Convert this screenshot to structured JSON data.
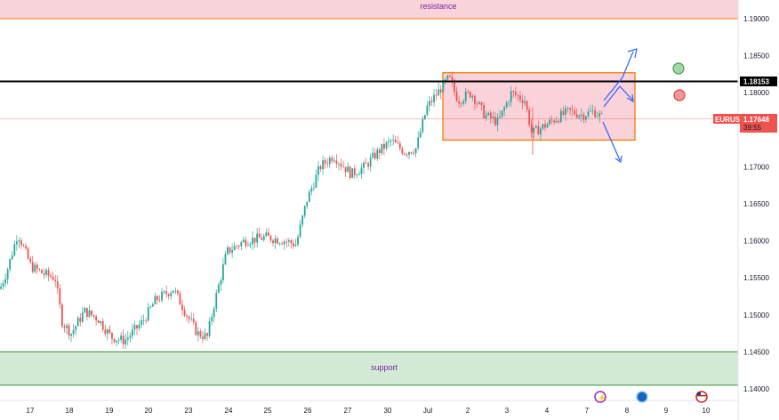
{
  "chart_data": {
    "type": "candlestick",
    "symbol": "EURUSD",
    "last_price": "1.17648",
    "countdown": "39:55",
    "key_level": "1.18153",
    "ylim": [
      1.1395,
      1.195
    ],
    "y_ticks": [
      "1.19000",
      "1.18500",
      "1.18000",
      "1.17500",
      "1.17000",
      "1.16500",
      "1.16000",
      "1.15500",
      "1.15000",
      "1.14500",
      "1.14000"
    ],
    "x_ticks": [
      "17",
      "18",
      "19",
      "20",
      "23",
      "24",
      "25",
      "26",
      "27",
      "30",
      "Jul",
      "2",
      "3",
      "4",
      "7",
      "8",
      "9",
      "10"
    ],
    "zones": {
      "resistance": {
        "label": "resistance",
        "from": 1.19,
        "to": 1.196
      },
      "support": {
        "label": "support",
        "from": 1.1405,
        "to": 1.145
      }
    },
    "range_box": {
      "from": 1.1736,
      "to": 1.1827
    },
    "path_keypoints": [
      [
        0,
        1.1535
      ],
      [
        8,
        1.156
      ],
      [
        20,
        1.161
      ],
      [
        35,
        1.1565
      ],
      [
        50,
        1.1555
      ],
      [
        62,
        1.155
      ],
      [
        70,
        1.149
      ],
      [
        80,
        1.1475
      ],
      [
        95,
        1.1505
      ],
      [
        110,
        1.1495
      ],
      [
        125,
        1.147
      ],
      [
        140,
        1.1465
      ],
      [
        160,
        1.149
      ],
      [
        175,
        1.152
      ],
      [
        195,
        1.1535
      ],
      [
        210,
        1.15
      ],
      [
        222,
        1.1475
      ],
      [
        233,
        1.147
      ],
      [
        240,
        1.151
      ],
      [
        255,
        1.1585
      ],
      [
        275,
        1.16
      ],
      [
        300,
        1.1605
      ],
      [
        320,
        1.16
      ],
      [
        333,
        1.1595
      ],
      [
        345,
        1.1655
      ],
      [
        360,
        1.17
      ],
      [
        375,
        1.1715
      ],
      [
        395,
        1.169
      ],
      [
        410,
        1.17
      ],
      [
        425,
        1.172
      ],
      [
        440,
        1.1735
      ],
      [
        455,
        1.172
      ],
      [
        468,
        1.1725
      ],
      [
        480,
        1.178
      ],
      [
        492,
        1.18
      ],
      [
        505,
        1.182
      ],
      [
        515,
        1.179
      ],
      [
        530,
        1.18
      ],
      [
        545,
        1.177
      ],
      [
        560,
        1.176
      ],
      [
        575,
        1.18
      ],
      [
        590,
        1.179
      ],
      [
        598,
        1.1745
      ],
      [
        612,
        1.1755
      ],
      [
        625,
        1.1765
      ],
      [
        640,
        1.1775
      ],
      [
        655,
        1.177
      ],
      [
        668,
        1.1775
      ],
      [
        678,
        1.1765
      ]
    ],
    "colors": {
      "up": "#26a69a",
      "down": "#ef5350",
      "arrow": "#2962ff",
      "box": "#f57c00",
      "green_zone": "#43a047",
      "red_zone": "#e53935"
    }
  }
}
